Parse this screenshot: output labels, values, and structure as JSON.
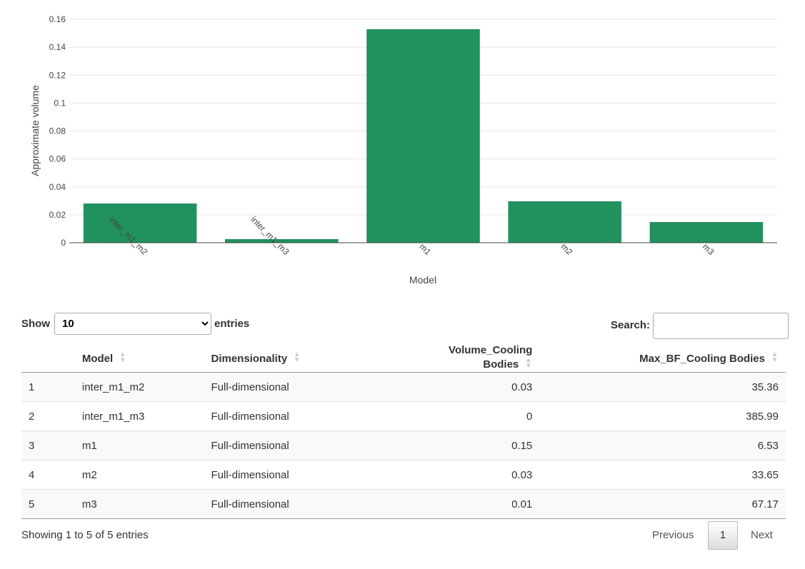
{
  "chart_data": {
    "type": "bar",
    "categories": [
      "inter_m1_m2",
      "inter_m1_m3",
      "m1",
      "m2",
      "m3"
    ],
    "values": [
      0.0281,
      0.0026,
      0.1529,
      0.0297,
      0.0148
    ],
    "xlabel": "Model",
    "ylabel": "Approximate volume",
    "ylim": [
      0,
      0.16
    ],
    "yticks": [
      "0",
      "0.02",
      "0.04",
      "0.06",
      "0.08",
      "0.1",
      "0.12",
      "0.14",
      "0.16"
    ],
    "color": "#21915e",
    "grid": true
  },
  "controls": {
    "show": "Show",
    "length": "10",
    "entries": "entries",
    "search": "Search:",
    "search_value": ""
  },
  "table": {
    "headers": [
      "",
      "Model",
      "Dimensionality",
      "Volume_Cooling Bodies",
      "Max_BF_Cooling Bodies"
    ],
    "rows": [
      [
        "1",
        "inter_m1_m2",
        "Full-dimensional",
        "0.03",
        "35.36"
      ],
      [
        "2",
        "inter_m1_m3",
        "Full-dimensional",
        "0",
        "385.99"
      ],
      [
        "3",
        "m1",
        "Full-dimensional",
        "0.15",
        "6.53"
      ],
      [
        "4",
        "m2",
        "Full-dimensional",
        "0.03",
        "33.65"
      ],
      [
        "5",
        "m3",
        "Full-dimensional",
        "0.01",
        "67.17"
      ]
    ]
  },
  "footer": {
    "info": "Showing 1 to 5 of 5 entries",
    "previous": "Previous",
    "page": "1",
    "next": "Next"
  }
}
